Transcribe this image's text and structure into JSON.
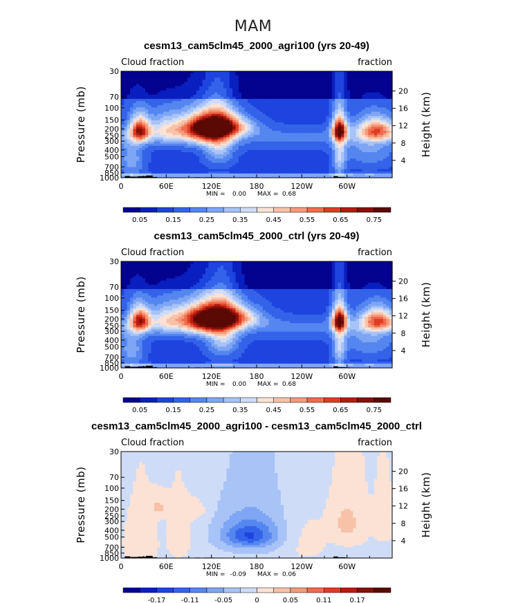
{
  "figure_title": "MAM",
  "chart_data": [
    {
      "type": "heatmap",
      "title": "cesm13_cam5clm45_2000_agri100 (yrs 20-49)",
      "left_label": "Cloud fraction",
      "right_label": "fraction",
      "ylabel": "Pressure (mb)",
      "y2label": "Height (km)",
      "x_ticks": [
        "0",
        "60E",
        "120E",
        "180",
        "120W",
        "60W"
      ],
      "y_ticks": [
        "30",
        "70",
        "100",
        "150",
        "200",
        "250",
        "300",
        "400",
        "500",
        "700",
        "850",
        "1000"
      ],
      "y2_ticks": [
        "20",
        "16",
        "12",
        "8",
        "4"
      ],
      "min_label": "MIN =",
      "min_value": "0.00",
      "max_label": "MAX =",
      "max_value": "0.68",
      "colorbar_labels": [
        "0.05",
        "0.15",
        "0.25",
        "0.35",
        "0.45",
        "0.55",
        "0.65",
        "0.75"
      ],
      "colorbar_colors": [
        "#03038f",
        "#0a1fbf",
        "#1d44de",
        "#3463ea",
        "#5586f0",
        "#7ea6f4",
        "#a8c3f6",
        "#cfdcf7",
        "#fbe2d5",
        "#f8c2a8",
        "#f49a7b",
        "#ee6c4c",
        "#df3c22",
        "#b61a10",
        "#851008",
        "#5a0904"
      ],
      "value_range": [
        0,
        0.8
      ],
      "features": [
        {
          "lon": 25,
          "p": 210,
          "val": 0.62,
          "slon": 9,
          "sp": 60
        },
        {
          "lon": 14,
          "p": 550,
          "val": 0.2,
          "slon": 12,
          "sp": 250
        },
        {
          "lon": 130,
          "p": 185,
          "val": 0.68,
          "slon": 28,
          "sp": 45
        },
        {
          "lon": 112,
          "p": 210,
          "val": 0.5,
          "slon": 22,
          "sp": 80
        },
        {
          "lon": 130,
          "p": 300,
          "val": 0.28,
          "slon": 14,
          "sp": 220
        },
        {
          "lon": 290,
          "p": 210,
          "val": 0.62,
          "slon": 7,
          "sp": 55
        },
        {
          "lon": 290,
          "p": 450,
          "val": 0.28,
          "slon": 6,
          "sp": 350
        },
        {
          "lon": 340,
          "p": 210,
          "val": 0.5,
          "slon": 18,
          "sp": 55
        },
        {
          "lon": 330,
          "p": 420,
          "val": 0.15,
          "slon": 25,
          "sp": 200
        },
        {
          "lon": 60,
          "p": 200,
          "val": 0.3,
          "slon": 20,
          "sp": 70
        }
      ],
      "topo": [
        {
          "lon0": 5,
          "lon1": 12,
          "p": 945
        },
        {
          "lon0": 12,
          "lon1": 22,
          "p": 965
        },
        {
          "lon0": 22,
          "lon1": 33,
          "p": 955
        },
        {
          "lon0": 33,
          "lon1": 42,
          "p": 930
        },
        {
          "lon0": 42,
          "lon1": 48,
          "p": 975
        },
        {
          "lon0": 98,
          "lon1": 105,
          "p": 985
        },
        {
          "lon0": 110,
          "lon1": 124,
          "p": 985
        },
        {
          "lon0": 282,
          "lon1": 288,
          "p": 950
        },
        {
          "lon0": 288,
          "lon1": 298,
          "p": 975
        },
        {
          "lon0": 298,
          "lon1": 304,
          "p": 985
        }
      ]
    },
    {
      "type": "heatmap",
      "title": "cesm13_cam5clm45_2000_ctrl (yrs 20-49)",
      "left_label": "Cloud fraction",
      "right_label": "fraction",
      "ylabel": "Pressure (mb)",
      "y2label": "Height (km)",
      "x_ticks": [
        "0",
        "60E",
        "120E",
        "180",
        "120W",
        "60W"
      ],
      "y_ticks": [
        "30",
        "70",
        "100",
        "150",
        "200",
        "250",
        "300",
        "400",
        "500",
        "700",
        "850",
        "1000"
      ],
      "y2_ticks": [
        "20",
        "16",
        "12",
        "8",
        "4"
      ],
      "min_label": "MIN =",
      "min_value": "0.00",
      "max_label": "MAX =",
      "max_value": "0.68",
      "colorbar_labels": [
        "0.05",
        "0.15",
        "0.25",
        "0.35",
        "0.45",
        "0.55",
        "0.65",
        "0.75"
      ],
      "colorbar_colors": [
        "#03038f",
        "#0a1fbf",
        "#1d44de",
        "#3463ea",
        "#5586f0",
        "#7ea6f4",
        "#a8c3f6",
        "#cfdcf7",
        "#fbe2d5",
        "#f8c2a8",
        "#f49a7b",
        "#ee6c4c",
        "#df3c22",
        "#b61a10",
        "#851008",
        "#5a0904"
      ],
      "value_range": [
        0,
        0.8
      ],
      "features": [
        {
          "lon": 25,
          "p": 210,
          "val": 0.6,
          "slon": 9,
          "sp": 60
        },
        {
          "lon": 14,
          "p": 550,
          "val": 0.2,
          "slon": 12,
          "sp": 250
        },
        {
          "lon": 135,
          "p": 190,
          "val": 0.68,
          "slon": 30,
          "sp": 50
        },
        {
          "lon": 112,
          "p": 210,
          "val": 0.5,
          "slon": 22,
          "sp": 80
        },
        {
          "lon": 135,
          "p": 320,
          "val": 0.3,
          "slon": 15,
          "sp": 230
        },
        {
          "lon": 290,
          "p": 210,
          "val": 0.64,
          "slon": 7,
          "sp": 55
        },
        {
          "lon": 290,
          "p": 450,
          "val": 0.28,
          "slon": 6,
          "sp": 350
        },
        {
          "lon": 342,
          "p": 210,
          "val": 0.52,
          "slon": 16,
          "sp": 55
        },
        {
          "lon": 330,
          "p": 420,
          "val": 0.15,
          "slon": 25,
          "sp": 200
        },
        {
          "lon": 60,
          "p": 200,
          "val": 0.3,
          "slon": 20,
          "sp": 70
        }
      ],
      "topo": [
        {
          "lon0": 5,
          "lon1": 12,
          "p": 945
        },
        {
          "lon0": 12,
          "lon1": 22,
          "p": 965
        },
        {
          "lon0": 22,
          "lon1": 33,
          "p": 955
        },
        {
          "lon0": 33,
          "lon1": 42,
          "p": 930
        },
        {
          "lon0": 42,
          "lon1": 48,
          "p": 975
        },
        {
          "lon0": 98,
          "lon1": 105,
          "p": 985
        },
        {
          "lon0": 110,
          "lon1": 124,
          "p": 985
        },
        {
          "lon0": 282,
          "lon1": 288,
          "p": 950
        },
        {
          "lon0": 288,
          "lon1": 298,
          "p": 975
        },
        {
          "lon0": 298,
          "lon1": 304,
          "p": 985
        }
      ]
    },
    {
      "type": "heatmap",
      "title": "cesm13_cam5clm45_2000_agri100 - cesm13_cam5clm45_2000_ctrl",
      "left_label": "Cloud fraction",
      "right_label": "fraction",
      "ylabel": "Pressure (mb)",
      "y2label": "Height (km)",
      "x_ticks": [
        "0",
        "60E",
        "120E",
        "180",
        "120W",
        "60W"
      ],
      "y_ticks": [
        "30",
        "70",
        "100",
        "150",
        "200",
        "250",
        "300",
        "400",
        "500",
        "700",
        "850",
        "1000"
      ],
      "y2_ticks": [
        "20",
        "16",
        "12",
        "8",
        "4"
      ],
      "min_label": "MIN =",
      "min_value": "-0.09",
      "max_label": "MAX =",
      "max_value": "0.06",
      "colorbar_labels": [
        "-0.17",
        "-0.11",
        "-0.05",
        "0",
        "0.05",
        "0.11",
        "0.17"
      ],
      "colorbar_colors": [
        "#03038f",
        "#0a1fbf",
        "#1d44de",
        "#3463ea",
        "#5586f0",
        "#7ea6f4",
        "#a8c3f6",
        "#cfdcf7",
        "#fbe2d5",
        "#f8c2a8",
        "#f49a7b",
        "#ee6c4c",
        "#df3c22",
        "#b61a10",
        "#851008",
        "#5a0904"
      ],
      "value_range": [
        -0.24,
        0.24
      ],
      "features": [
        {
          "lon": 170,
          "p": 480,
          "val": -0.09,
          "slon": 22,
          "sp": 130
        },
        {
          "lon": 170,
          "p": 420,
          "val": -0.05,
          "slon": 40,
          "sp": 280
        },
        {
          "lon": 300,
          "p": 320,
          "val": 0.045,
          "slon": 14,
          "sp": 150
        },
        {
          "lon": 50,
          "p": 190,
          "val": 0.04,
          "slon": 10,
          "sp": 40
        },
        {
          "lon": 100,
          "p": 210,
          "val": 0.03,
          "slon": 12,
          "sp": 50
        },
        {
          "lon": 20,
          "p": 600,
          "val": 0.02,
          "slon": 15,
          "sp": 350
        },
        {
          "lon": 240,
          "p": 560,
          "val": 0.025,
          "slon": 20,
          "sp": 350
        },
        {
          "lon": 350,
          "p": 300,
          "val": 0.03,
          "slon": 8,
          "sp": 150
        },
        {
          "lon": 80,
          "p": 500,
          "val": 0.02,
          "slon": 10,
          "sp": 250
        }
      ],
      "topo": [
        {
          "lon0": 5,
          "lon1": 12,
          "p": 945
        },
        {
          "lon0": 12,
          "lon1": 22,
          "p": 965
        },
        {
          "lon0": 22,
          "lon1": 33,
          "p": 955
        },
        {
          "lon0": 33,
          "lon1": 42,
          "p": 930
        },
        {
          "lon0": 42,
          "lon1": 48,
          "p": 975
        },
        {
          "lon0": 98,
          "lon1": 105,
          "p": 985
        },
        {
          "lon0": 110,
          "lon1": 124,
          "p": 985
        },
        {
          "lon0": 282,
          "lon1": 288,
          "p": 950
        },
        {
          "lon0": 288,
          "lon1": 298,
          "p": 975
        },
        {
          "lon0": 298,
          "lon1": 304,
          "p": 985
        }
      ]
    }
  ]
}
